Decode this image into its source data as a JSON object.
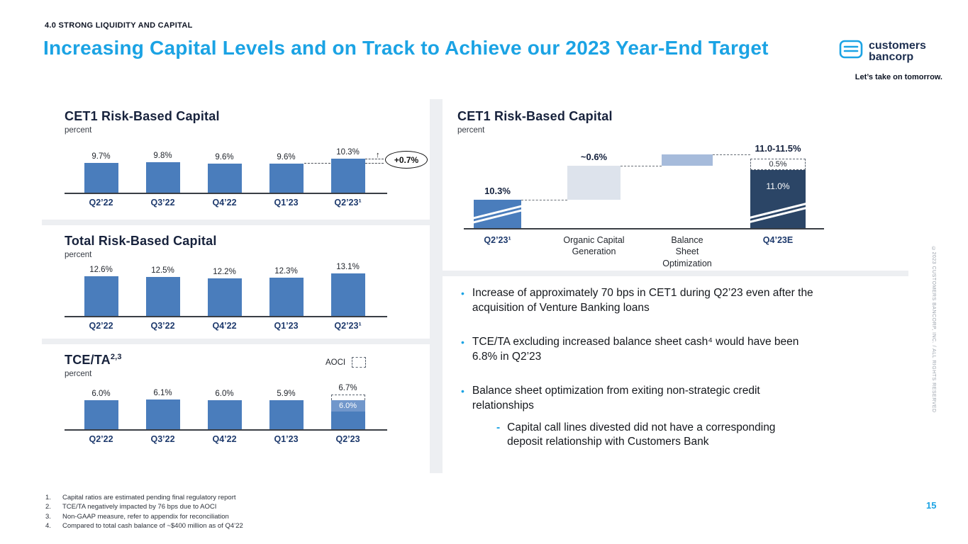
{
  "slide": {
    "kicker": "4.0 STRONG LIQUIDITY AND CAPITAL",
    "title": "Increasing Capital Levels and on Track to Achieve our 2023 Year-End Target",
    "page_number": "15",
    "copyright_vertical": "©2023 CUSTOMERS BANCORP, INC. / ALL RIGHTS RESERVED"
  },
  "brand": {
    "name_top": "customers",
    "name_bottom": "bancorp",
    "tagline": "Let’s take on tomorrow."
  },
  "colors": {
    "accent_cyan": "#1ba3e4",
    "bar_blue": "#4a7dbc",
    "bar_navy": "#2b4566",
    "bar_lightblue": "#a6bbdb",
    "bar_lightgray": "#dde3ec"
  },
  "chart_data": [
    {
      "id": "cet1_trend",
      "type": "bar",
      "title": "CET1 Risk-Based Capital",
      "ylabel": "percent",
      "categories": [
        "Q2’22",
        "Q3’22",
        "Q4’22",
        "Q1’23",
        "Q2’23¹"
      ],
      "values": [
        9.7,
        9.8,
        9.6,
        9.6,
        10.3
      ],
      "labels": [
        "9.7%",
        "9.8%",
        "9.6%",
        "9.6%",
        "10.3%"
      ],
      "annotation": {
        "text": "+0.7%",
        "arrow": "↑"
      }
    },
    {
      "id": "total_rbc_trend",
      "type": "bar",
      "title": "Total Risk-Based Capital",
      "ylabel": "percent",
      "categories": [
        "Q2’22",
        "Q3’22",
        "Q4’22",
        "Q1’23",
        "Q2’23¹"
      ],
      "values": [
        12.6,
        12.5,
        12.2,
        12.3,
        13.1
      ],
      "labels": [
        "12.6%",
        "12.5%",
        "12.2%",
        "12.3%",
        "13.1%"
      ]
    },
    {
      "id": "tce_ta_trend",
      "type": "bar",
      "title": "TCE/TA",
      "title_sup": "2,3",
      "ylabel": "percent",
      "legend": "AOCI",
      "categories": [
        "Q2’22",
        "Q3’22",
        "Q4’22",
        "Q1’23",
        "Q2’23"
      ],
      "values": [
        6.0,
        6.1,
        6.0,
        5.9,
        6.7
      ],
      "labels": [
        "6.0%",
        "6.1%",
        "6.0%",
        "5.9%",
        "6.7%"
      ],
      "last_bar": {
        "solid_value": 6.0,
        "solid_label": "6.0%",
        "aoci_value": 0.7,
        "total_value": 6.7,
        "total_label": "6.7%"
      }
    },
    {
      "id": "cet1_waterfall",
      "type": "waterfall",
      "title": "CET1 Risk-Based Capital",
      "ylabel": "percent",
      "axis_break": true,
      "steps": [
        {
          "category": "Q2’23¹",
          "kind": "total",
          "color": "blue",
          "value": 10.3,
          "label": "10.3%",
          "axis_break": true
        },
        {
          "category": "Organic Capital\nGeneration",
          "kind": "increase",
          "color": "lightgray",
          "value": 0.6,
          "label": "~0.6%"
        },
        {
          "category": "Balance\nSheet\nOptimization",
          "kind": "increase",
          "color": "lightblue",
          "value": 0.5,
          "label": ""
        },
        {
          "category": "Q4’23E",
          "kind": "total",
          "color": "navy",
          "value": 11.0,
          "value_target_high": 11.5,
          "label": "11.0-11.5%",
          "inner_label": "11.0%",
          "dashed_label": "0.5%",
          "axis_break": true
        }
      ]
    }
  ],
  "commentary": {
    "marker": "•",
    "sub_marker": "-",
    "items": [
      {
        "text": "Increase of approximately 70 bps in CET1 during Q2’23 even after the\nacquisition of Venture Banking loans"
      },
      {
        "text": "TCE/TA excluding increased balance sheet cash⁴ would have been\n6.8% in Q2’23"
      },
      {
        "text": "Balance sheet optimization from exiting non-strategic credit\nrelationships",
        "sub": [
          "Capital call lines divested did not have a corresponding\ndeposit relationship with Customers Bank"
        ]
      }
    ]
  },
  "footnotes": [
    "Capital ratios are estimated pending final regulatory report",
    "TCE/TA negatively impacted by 76 bps due to AOCI",
    "Non-GAAP measure, refer to appendix for reconciliation",
    "Compared to total cash balance of ~$400 million as of Q4’22"
  ]
}
